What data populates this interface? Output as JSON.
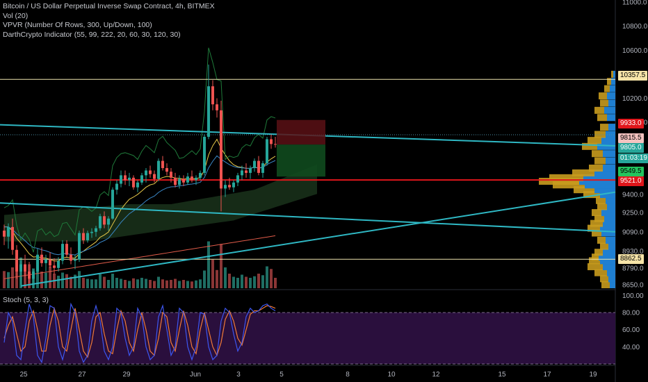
{
  "legend": {
    "title": "Bitcoin / US Dollar Perpetual Inverse Swap Contract, 4h, BITMEX",
    "vol": "Vol (20)",
    "vpvr": "VPVR (Number Of Rows, 300, Up/Down, 100)",
    "darth": "DarthCrypto Indicator (55, 99, 222, 20, 60, 30, 120, 30)"
  },
  "stoch": {
    "label": "Stoch (5, 3, 3)"
  },
  "colors": {
    "up": "#26a69a",
    "down": "#ef5350",
    "channel": "#2fb8c4",
    "support": "#e0161b",
    "level": "#f0e6b0",
    "ema_yellow": "#e8c94a",
    "ema_blue": "#3a88c8",
    "ema_red": "#e25c4a",
    "vp_gold": "#c89b1e",
    "vp_blue": "#1f7fd1",
    "stoch_bg": "#2a0f3d",
    "stoch_k": "#3d56f0",
    "stoch_d": "#f07a38"
  },
  "price_axis": {
    "ticks": [
      "11000.0",
      "10800.0",
      "10600.0",
      "10400.0",
      "10200.0",
      "10000.0",
      "9805.0",
      "9400.0",
      "9250.0",
      "9090.0",
      "8930.0",
      "8790.0",
      "8650.0"
    ],
    "labels": [
      {
        "text": "10357.5",
        "bg": "#f6e4a8",
        "fg": "#000000"
      },
      {
        "text": "9933.0",
        "bg": "#e0161b",
        "fg": "#ffffff"
      },
      {
        "text": "9815.5",
        "bg": "#f4c3c0",
        "fg": "#000000"
      },
      {
        "text": "9805.0",
        "bg": "#26a69a",
        "fg": "#ffffff"
      },
      {
        "text": "01:03:19",
        "bg": "#26a69a",
        "fg": "#ffffff"
      },
      {
        "text": "9549.5",
        "bg": "#22c55e",
        "fg": "#000000"
      },
      {
        "text": "9521.0",
        "bg": "#e0161b",
        "fg": "#ffffff"
      },
      {
        "text": "8862.5",
        "bg": "#f6e4a8",
        "fg": "#000000"
      }
    ]
  },
  "stoch_axis": {
    "ticks": [
      "100.00",
      "80.00",
      "60.00",
      "40.00"
    ]
  },
  "time_axis": {
    "ticks": [
      "25",
      "27",
      "29",
      "Jun",
      "3",
      "5",
      "8",
      "10",
      "12",
      "15",
      "17",
      "19"
    ]
  },
  "chart_data": {
    "type": "candlestick",
    "timeframe": "4h",
    "price_range": [
      8650,
      11000
    ],
    "levels": {
      "resistance": 10357.5,
      "support_red": 9521.0,
      "low_level": 8862.5
    },
    "candles": [
      [
        9100,
        9150,
        8980,
        9050
      ],
      [
        9050,
        9160,
        8950,
        9130
      ],
      [
        9130,
        9200,
        8900,
        8940
      ],
      [
        8940,
        8980,
        8700,
        8760
      ],
      [
        8760,
        8850,
        8650,
        8820
      ],
      [
        8820,
        8900,
        8720,
        8760
      ],
      [
        8760,
        8840,
        8660,
        8700
      ],
      [
        8700,
        8780,
        8620,
        8760
      ],
      [
        8760,
        8950,
        8740,
        8900
      ],
      [
        8900,
        8960,
        8800,
        8830
      ],
      [
        8830,
        8900,
        8760,
        8860
      ],
      [
        8860,
        8920,
        8790,
        8810
      ],
      [
        8810,
        8870,
        8740,
        8790
      ],
      [
        8790,
        8880,
        8760,
        8850
      ],
      [
        8850,
        9020,
        8820,
        8990
      ],
      [
        8990,
        9020,
        8880,
        8900
      ],
      [
        8900,
        8960,
        8820,
        8850
      ],
      [
        8850,
        8900,
        8780,
        8860
      ],
      [
        8860,
        9100,
        8840,
        9080
      ],
      [
        9080,
        9120,
        8990,
        9020
      ],
      [
        9020,
        9100,
        9000,
        9080
      ],
      [
        9080,
        9120,
        9040,
        9090
      ],
      [
        9090,
        9140,
        9050,
        9120
      ],
      [
        9120,
        9240,
        9100,
        9220
      ],
      [
        9220,
        9260,
        9120,
        9150
      ],
      [
        9150,
        9220,
        9100,
        9200
      ],
      [
        9200,
        9460,
        9190,
        9440
      ],
      [
        9440,
        9520,
        9400,
        9490
      ],
      [
        9490,
        9600,
        9460,
        9560
      ],
      [
        9560,
        9600,
        9480,
        9520
      ],
      [
        9520,
        9580,
        9470,
        9540
      ],
      [
        9540,
        9560,
        9440,
        9460
      ],
      [
        9460,
        9520,
        9420,
        9500
      ],
      [
        9500,
        9580,
        9480,
        9560
      ],
      [
        9560,
        9620,
        9500,
        9600
      ],
      [
        9600,
        9640,
        9540,
        9570
      ],
      [
        9570,
        9600,
        9500,
        9530
      ],
      [
        9530,
        9700,
        9510,
        9680
      ],
      [
        9680,
        9720,
        9600,
        9620
      ],
      [
        9620,
        9660,
        9560,
        9590
      ],
      [
        9590,
        9620,
        9500,
        9540
      ],
      [
        9540,
        9580,
        9460,
        9480
      ],
      [
        9480,
        9560,
        9450,
        9530
      ],
      [
        9530,
        9560,
        9470,
        9500
      ],
      [
        9500,
        9580,
        9480,
        9550
      ],
      [
        9550,
        9600,
        9500,
        9520
      ],
      [
        9520,
        9560,
        9480,
        9540
      ],
      [
        9540,
        9600,
        9520,
        9580
      ],
      [
        9580,
        9900,
        9560,
        9880
      ],
      [
        9880,
        10480,
        9860,
        10300
      ],
      [
        10300,
        10350,
        10100,
        10150
      ],
      [
        10150,
        10200,
        10040,
        10100
      ],
      [
        10100,
        10180,
        9260,
        9450
      ],
      [
        9450,
        9520,
        9380,
        9480
      ],
      [
        9480,
        9540,
        9440,
        9460
      ],
      [
        9460,
        9520,
        9420,
        9500
      ],
      [
        9500,
        9580,
        9470,
        9560
      ],
      [
        9560,
        9640,
        9520,
        9600
      ],
      [
        9600,
        9660,
        9540,
        9580
      ],
      [
        9580,
        9640,
        9530,
        9620
      ],
      [
        9620,
        9700,
        9590,
        9680
      ],
      [
        9680,
        9720,
        9560,
        9580
      ],
      [
        9580,
        9680,
        9540,
        9660
      ],
      [
        9660,
        9880,
        9640,
        9860
      ],
      [
        9860,
        9900,
        9780,
        9820
      ],
      [
        9820,
        9880,
        9790,
        9815.5
      ]
    ],
    "volumes": [
      0.33,
      0.31,
      0.4,
      0.54,
      0.59,
      0.37,
      0.46,
      0.38,
      0.52,
      0.32,
      0.3,
      0.42,
      0.28,
      0.24,
      0.3,
      0.27,
      0.22,
      0.26,
      0.33,
      0.2,
      0.18,
      0.17,
      0.17,
      0.27,
      0.22,
      0.16,
      0.28,
      0.2,
      0.18,
      0.16,
      0.14,
      0.19,
      0.17,
      0.2,
      0.18,
      0.16,
      0.14,
      0.22,
      0.17,
      0.15,
      0.16,
      0.18,
      0.14,
      0.16,
      0.14,
      0.13,
      0.15,
      0.17,
      0.34,
      0.9,
      0.55,
      0.35,
      0.85,
      0.4,
      0.28,
      0.22,
      0.2,
      0.26,
      0.22,
      0.2,
      0.23,
      0.28,
      0.25,
      0.42,
      0.37,
      0.2
    ],
    "stoch_k": [
      45,
      80,
      70,
      30,
      25,
      60,
      90,
      75,
      30,
      22,
      50,
      88,
      85,
      40,
      25,
      45,
      90,
      80,
      35,
      22,
      30,
      70,
      88,
      70,
      35,
      25,
      40,
      85,
      80,
      50,
      30,
      40,
      85,
      75,
      40,
      25,
      30,
      75,
      88,
      60,
      30,
      40,
      85,
      80,
      40,
      25,
      40,
      80,
      78,
      40,
      25,
      30,
      70,
      85,
      80,
      55,
      35,
      45,
      75,
      85,
      80,
      82,
      88,
      90,
      85,
      82
    ],
    "stoch_d": [
      50,
      65,
      75,
      55,
      35,
      40,
      70,
      82,
      60,
      35,
      35,
      65,
      85,
      70,
      40,
      35,
      60,
      85,
      60,
      35,
      28,
      45,
      75,
      80,
      55,
      35,
      32,
      60,
      82,
      70,
      45,
      35,
      60,
      80,
      60,
      35,
      30,
      50,
      80,
      75,
      45,
      35,
      60,
      82,
      65,
      40,
      32,
      60,
      80,
      60,
      40,
      30,
      45,
      72,
      82,
      70,
      50,
      42,
      60,
      78,
      82,
      82,
      85,
      88,
      87,
      85
    ]
  }
}
